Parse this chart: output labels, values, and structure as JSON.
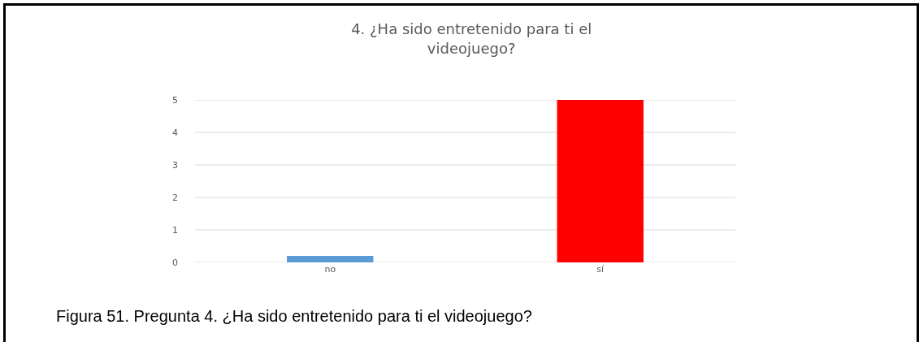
{
  "chart_data": {
    "type": "bar",
    "title": "4. ¿Ha sido entretenido para ti el\nvideojuego?",
    "categories": [
      "no",
      "sí"
    ],
    "values": [
      0.2,
      5
    ],
    "colors": [
      "#5b9bd5",
      "#ff0000"
    ],
    "ylim": [
      0,
      5
    ],
    "yticks": [
      0,
      1,
      2,
      3,
      4,
      5
    ],
    "grid": "y",
    "annotations": [
      "Figura 51. Pregunta 4. ¿Ha sido entretenido para ti el videojuego?"
    ]
  }
}
